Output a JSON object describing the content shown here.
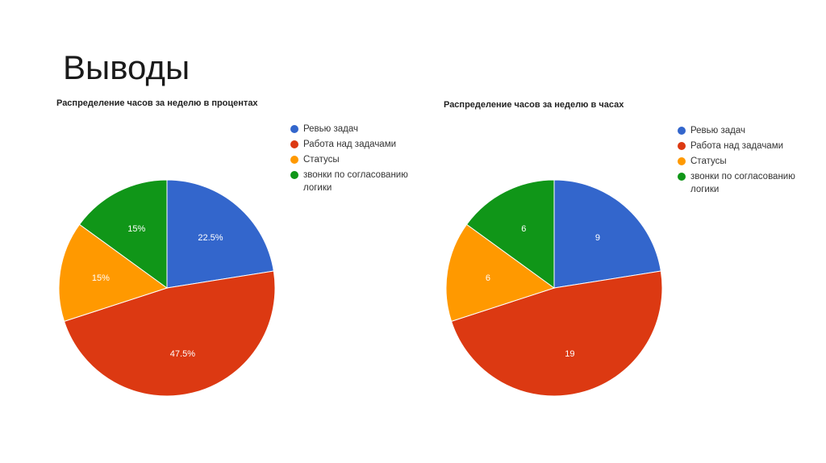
{
  "slide": {
    "title": "Выводы"
  },
  "colors": {
    "review": "#3366cc",
    "work": "#dc3912",
    "status": "#ff9900",
    "calls": "#109618"
  },
  "legend_labels": [
    "Ревью задач",
    "Работа над задачами",
    "Статусы",
    "звонки по согласованию логики"
  ],
  "chart_data": [
    {
      "type": "pie",
      "title": "Распределение часов за неделю в процентах",
      "categories": [
        "Ревью задач",
        "Работа над задачами",
        "Статусы",
        "звонки по согласованию логики"
      ],
      "values": [
        22.5,
        47.5,
        15,
        15
      ],
      "data_labels": [
        "22.5%",
        "47.5%",
        "15%",
        "15%"
      ],
      "legend_position": "right"
    },
    {
      "type": "pie",
      "title": "Распределение часов за неделю в часах",
      "categories": [
        "Ревью задач",
        "Работа над задачами",
        "Статусы",
        "звонки по согласованию логики"
      ],
      "values": [
        9,
        19,
        6,
        6
      ],
      "data_labels": [
        "9",
        "19",
        "6",
        "6"
      ],
      "legend_position": "right"
    }
  ]
}
